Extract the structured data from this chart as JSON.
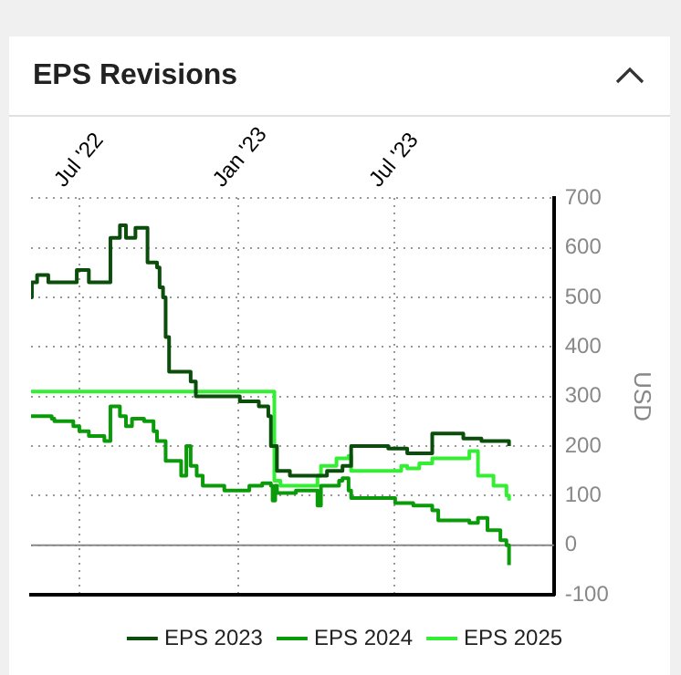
{
  "chart_data": {
    "type": "step",
    "title": "EPS Revisions",
    "ylabel": "USD",
    "xlim": [
      "2022-05-06",
      "2024-01-02"
    ],
    "xticks": [
      {
        "value": "2022-07-01",
        "label": "Jul '22"
      },
      {
        "value": "2023-01-01",
        "label": "Jan '23"
      },
      {
        "value": "2023-07-01",
        "label": "Jul '23"
      }
    ],
    "ylim": [
      -100,
      700
    ],
    "yticks": [
      -100,
      0,
      100,
      200,
      300,
      400,
      500,
      600,
      700
    ],
    "grid": true,
    "legend": "bottom",
    "line_style": "solid",
    "ref_lines": [
      {
        "axis": "y",
        "value": 0,
        "color": "#888888"
      }
    ],
    "series": [
      {
        "name": "EPS 2023",
        "color": "#0b4d0b",
        "x": [
          "2022-05-06",
          "2022-05-07",
          "2022-05-13",
          "2022-05-26",
          "2022-06-28",
          "2022-07-12",
          "2022-08-06",
          "2022-08-17",
          "2022-08-24",
          "2022-09-04",
          "2022-09-18",
          "2022-09-29",
          "2022-10-02",
          "2022-10-06",
          "2022-10-09",
          "2022-10-13",
          "2022-11-07",
          "2022-11-13",
          "2023-01-03",
          "2023-01-25",
          "2023-02-05",
          "2023-02-08",
          "2023-02-15",
          "2023-03-02",
          "2023-04-14",
          "2023-05-02",
          "2023-05-12",
          "2023-06-24",
          "2023-07-16",
          "2023-08-14",
          "2023-09-19",
          "2023-10-10",
          "2023-11-11"
        ],
        "values": [
          500,
          530,
          545,
          530,
          555,
          530,
          620,
          645,
          620,
          640,
          570,
          560,
          520,
          500,
          420,
          350,
          330,
          300,
          290,
          280,
          260,
          200,
          150,
          140,
          150,
          160,
          200,
          195,
          185,
          225,
          215,
          210,
          200
        ]
      },
      {
        "name": "EPS 2024",
        "color": "#0a9a0a",
        "x": [
          "2022-05-06",
          "2022-05-30",
          "2022-06-02",
          "2022-06-24",
          "2022-07-01",
          "2022-07-12",
          "2022-07-30",
          "2022-08-06",
          "2022-08-17",
          "2022-08-24",
          "2022-08-31",
          "2022-09-14",
          "2022-09-25",
          "2022-09-29",
          "2022-10-09",
          "2022-10-27",
          "2022-11-02",
          "2022-11-07",
          "2022-11-14",
          "2022-11-21",
          "2022-12-16",
          "2023-01-14",
          "2023-01-29",
          "2023-02-08",
          "2023-02-10",
          "2023-02-13",
          "2023-02-15",
          "2023-03-09",
          "2023-04-03",
          "2023-04-07",
          "2023-04-28",
          "2023-05-02",
          "2023-05-09",
          "2023-05-12",
          "2023-07-02",
          "2023-07-23",
          "2023-08-14",
          "2023-08-21",
          "2023-09-26",
          "2023-10-06",
          "2023-10-17",
          "2023-11-01",
          "2023-11-08",
          "2023-11-11"
        ],
        "values": [
          260,
          255,
          250,
          240,
          230,
          220,
          210,
          280,
          260,
          240,
          255,
          250,
          230,
          210,
          170,
          140,
          200,
          160,
          140,
          120,
          110,
          120,
          125,
          120,
          90,
          120,
          105,
          110,
          80,
          120,
          130,
          135,
          110,
          95,
          85,
          80,
          70,
          50,
          45,
          55,
          30,
          10,
          0,
          -40
        ]
      },
      {
        "name": "EPS 2025",
        "color": "#33ee33",
        "x": [
          "2022-05-06",
          "2023-02-06",
          "2023-02-12",
          "2023-02-19",
          "2023-04-03",
          "2023-04-07",
          "2023-04-25",
          "2023-05-09",
          "2023-05-12",
          "2023-07-09",
          "2023-07-16",
          "2023-07-30",
          "2023-08-14",
          "2023-09-26",
          "2023-10-06",
          "2023-10-24",
          "2023-11-08",
          "2023-11-11"
        ],
        "values": [
          310,
          310,
          130,
          120,
          140,
          160,
          175,
          180,
          150,
          160,
          155,
          165,
          175,
          190,
          140,
          120,
          100,
          90
        ]
      }
    ]
  }
}
